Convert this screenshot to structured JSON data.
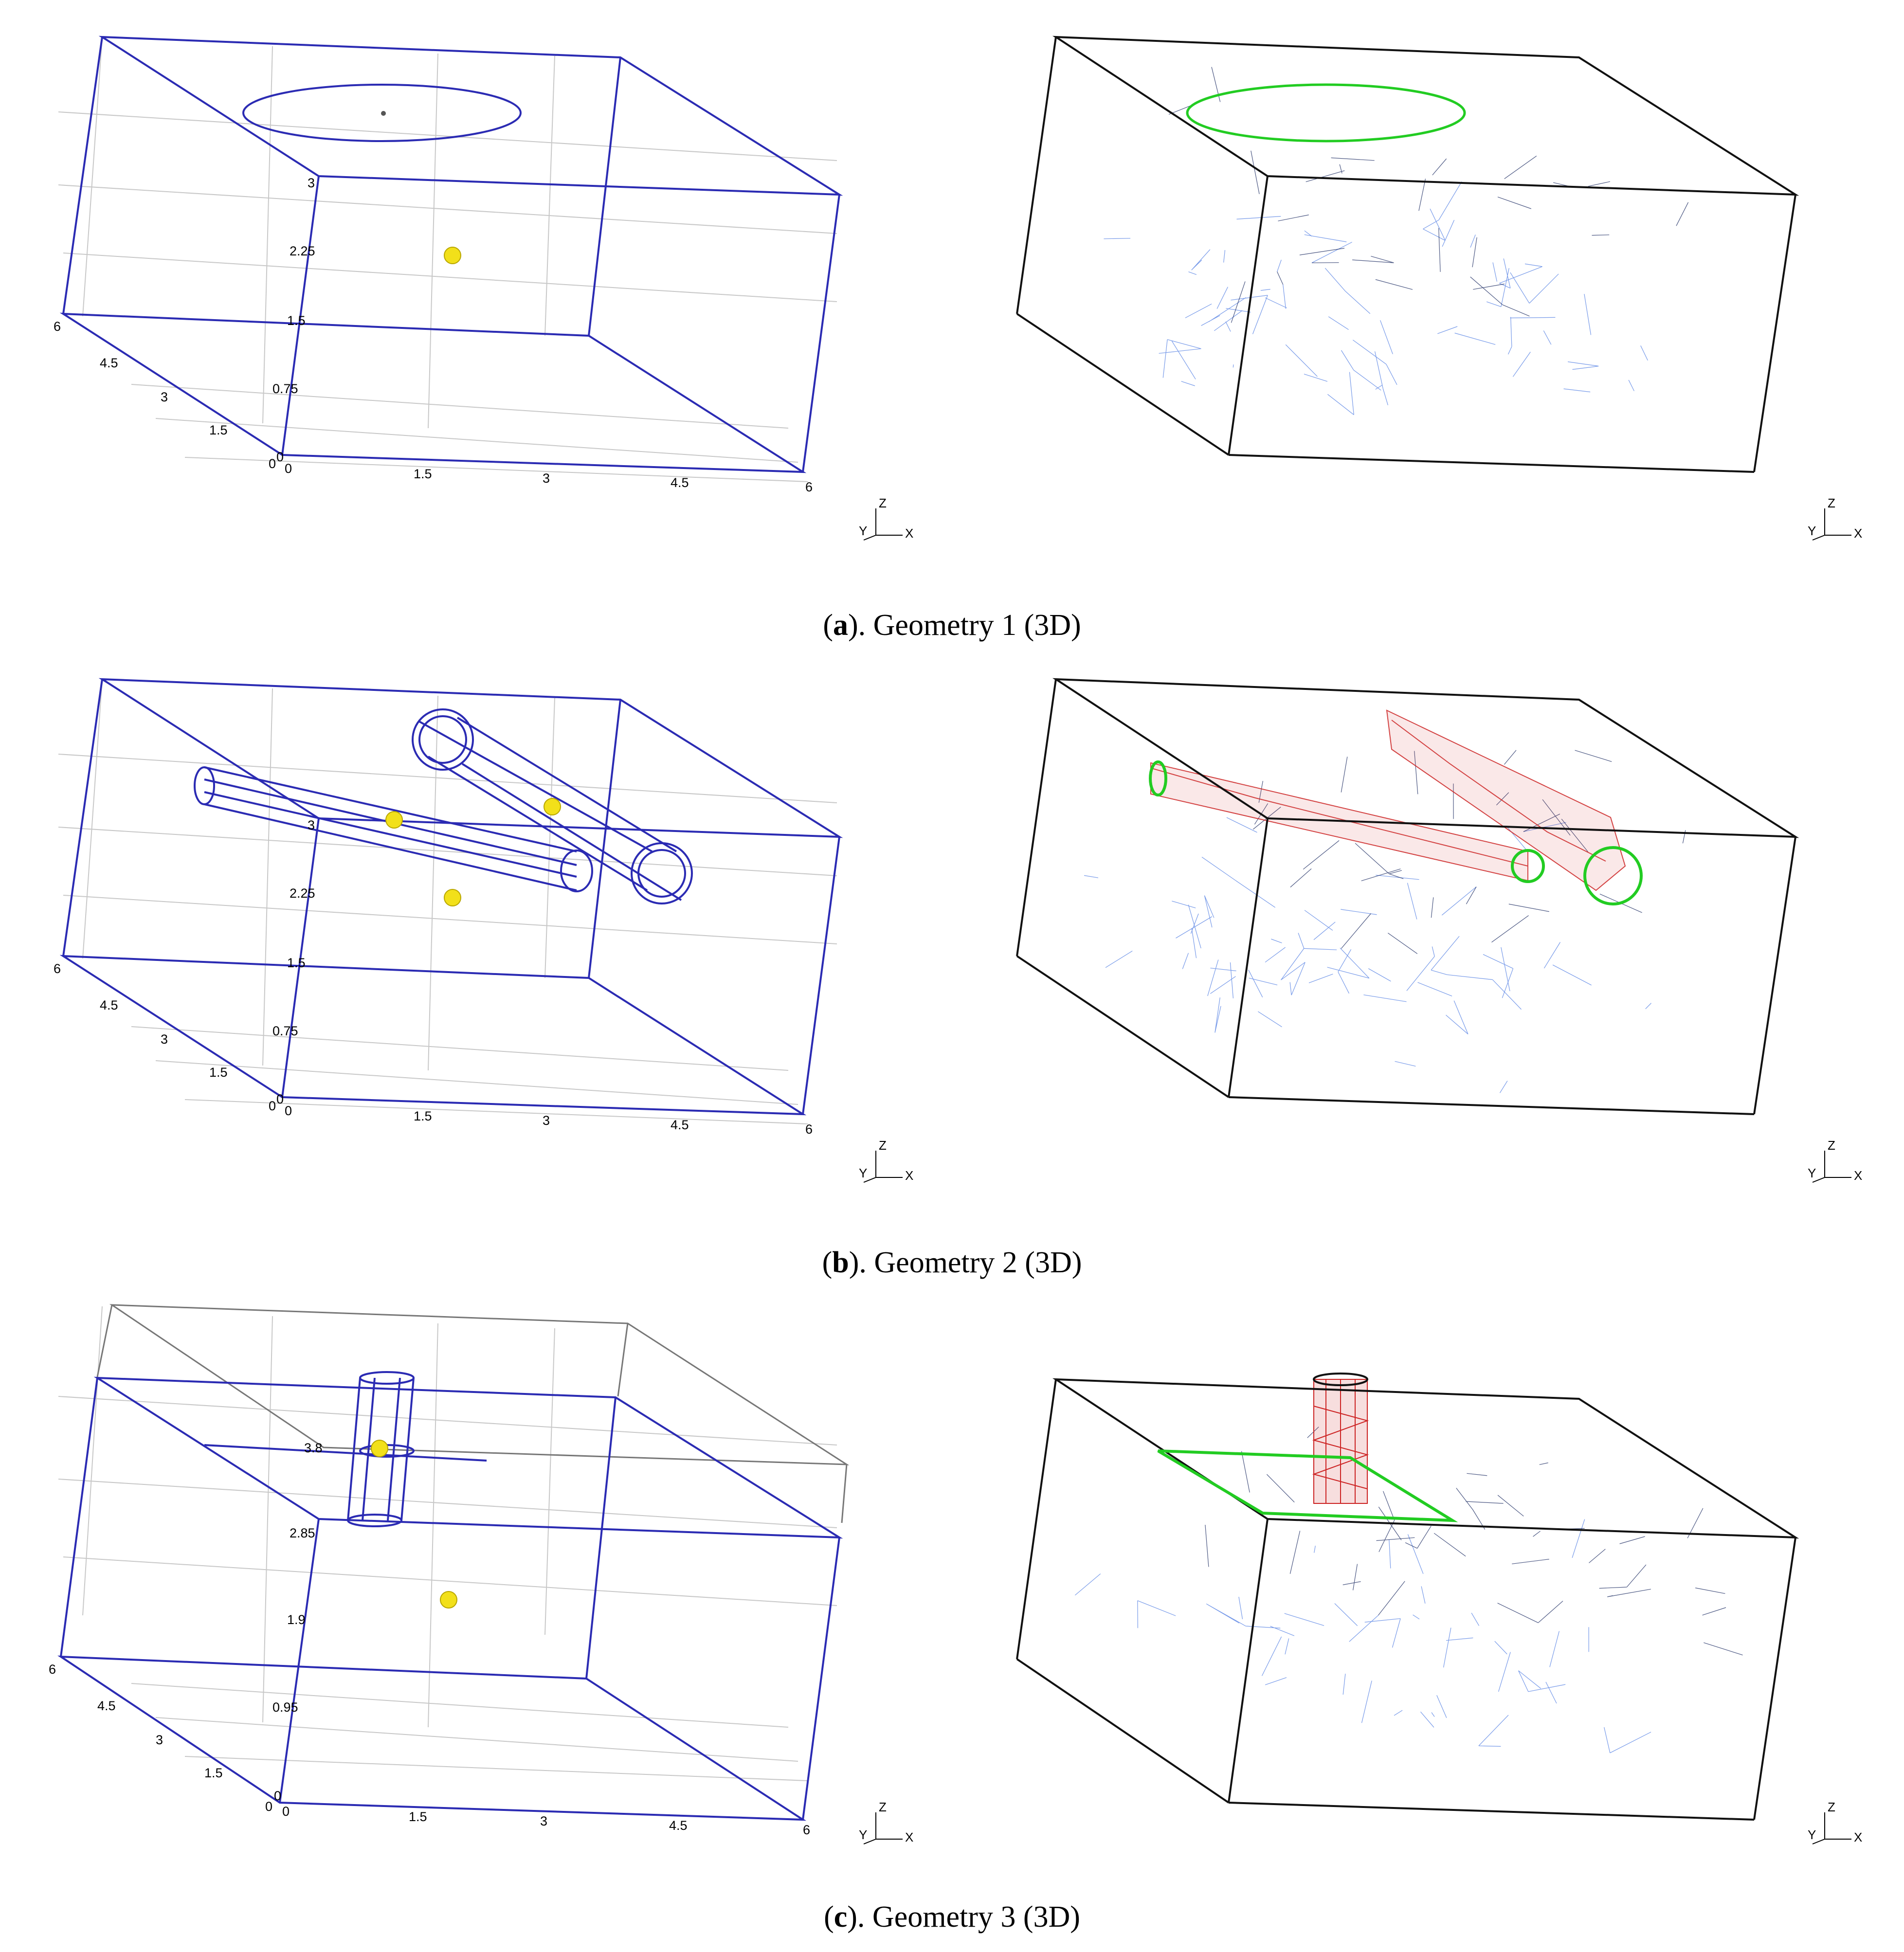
{
  "figures": [
    {
      "letter": "a",
      "caption_suffix": "). Geometry 1 (3D)",
      "x_ticks": [
        "0",
        "1.5",
        "3",
        "4.5",
        "6"
      ],
      "y_ticks": [
        "0",
        "1.5",
        "3",
        "4.5",
        "6"
      ],
      "z_ticks": [
        "0",
        "0.75",
        "1.5",
        "2.25",
        "3"
      ]
    },
    {
      "letter": "b",
      "caption_suffix": "). Geometry 2 (3D)",
      "x_ticks": [
        "0",
        "1.5",
        "3",
        "4.5",
        "6"
      ],
      "y_ticks": [
        "0",
        "1.5",
        "3",
        "4.5",
        "6"
      ],
      "z_ticks": [
        "0",
        "0.75",
        "1.5",
        "2.25",
        "3"
      ]
    },
    {
      "letter": "c",
      "caption_suffix": "). Geometry 3 (3D)",
      "x_ticks": [
        "0",
        "1.5",
        "3",
        "4.5",
        "6"
      ],
      "y_ticks": [
        "0",
        "1.5",
        "3",
        "4.5",
        "6"
      ],
      "z_ticks": [
        "0",
        "0.95",
        "1.9",
        "2.85",
        "3.8"
      ]
    }
  ],
  "axes_triad": {
    "z": "Z",
    "y": "Y",
    "x": "X"
  },
  "colors": {
    "box_edge": "#2b2bb3",
    "grid": "#c8c8c8",
    "mesh_dark": "#10205a",
    "mesh_light": "#3d6fe0",
    "boundary_green": "#22cc22",
    "refined_red": "#cc2222",
    "source_yellow": "#f2e01a"
  }
}
